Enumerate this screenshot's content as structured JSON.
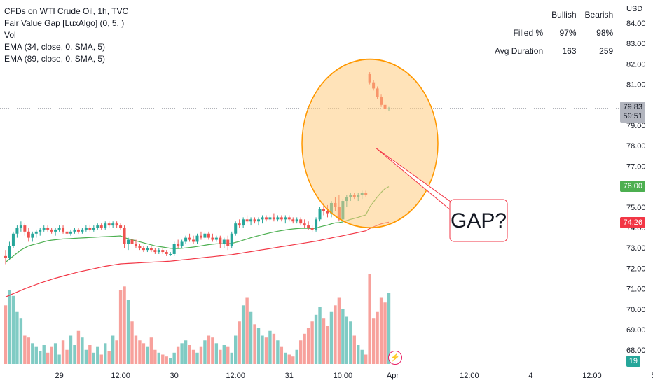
{
  "legend": {
    "title": "CFDs on WTI Crude Oil, 1h, TVC",
    "indicators": [
      "Fair Value Gap [LuxAlgo] (0, 5, )",
      "Vol",
      "EMA (34, close, 0, SMA, 5)",
      "EMA (89, close, 0, SMA, 5)"
    ]
  },
  "stats_table": {
    "headers": [
      "",
      "Bullish",
      "Bearish"
    ],
    "rows": [
      {
        "label": "Filled %",
        "bullish": "97%",
        "bearish": "98%"
      },
      {
        "label": "Avg Duration",
        "bullish": "163",
        "bearish": "259"
      }
    ]
  },
  "annotation": {
    "text": "GAP?"
  },
  "price_tags": {
    "current": "79.83",
    "countdown": "59:51",
    "ema34": "76.00",
    "ema89": "74.26"
  },
  "volume_tag": "19",
  "colors": {
    "up": "#26a69a",
    "down": "#ef5350",
    "ema34": "#4caf50",
    "ema89": "#f23645",
    "circle_fill": "#ffcc80",
    "circle_stroke": "#ff9800",
    "vol_up": "#80cbc4",
    "vol_down": "#f7a19c"
  },
  "chart_data": {
    "type": "candlestick",
    "y_axis": {
      "unit": "USD",
      "range": [
        67.5,
        84.7
      ],
      "ticks": [
        "84.00",
        "83.00",
        "82.00",
        "81.00",
        "80.00",
        "79.00",
        "78.00",
        "77.00",
        "76.00",
        "75.00",
        "74.00",
        "73.00",
        "72.00",
        "71.00",
        "70.00",
        "69.00",
        "68.00"
      ]
    },
    "x_axis": {
      "ticks": [
        {
          "label": "29",
          "index": 14
        },
        {
          "label": "12:00",
          "index": 30
        },
        {
          "label": "30",
          "index": 44
        },
        {
          "label": "12:00",
          "index": 60
        },
        {
          "label": "31",
          "index": 74
        },
        {
          "label": "10:00",
          "index": 88
        },
        {
          "label": "Apr",
          "index": 101
        },
        {
          "label": "12:00",
          "index": 121
        },
        {
          "label": "4",
          "index": 137
        },
        {
          "label": "12:00",
          "index": 153
        },
        {
          "label": "5",
          "index": 169
        }
      ]
    },
    "candles": [
      [
        72.6,
        72.9,
        72.2,
        72.5
      ],
      [
        72.5,
        73.3,
        72.4,
        73.1
      ],
      [
        73.1,
        73.8,
        73.0,
        73.7
      ],
      [
        73.7,
        74.1,
        73.5,
        74.0
      ],
      [
        74.0,
        74.3,
        73.8,
        74.1
      ],
      [
        74.1,
        74.2,
        73.6,
        73.8
      ],
      [
        73.8,
        74.0,
        73.3,
        73.5
      ],
      [
        73.5,
        73.8,
        73.3,
        73.7
      ],
      [
        73.7,
        73.9,
        73.5,
        73.8
      ],
      [
        73.8,
        74.0,
        73.6,
        73.9
      ],
      [
        73.9,
        74.1,
        73.8,
        74.0
      ],
      [
        74.0,
        74.1,
        73.8,
        73.9
      ],
      [
        73.9,
        74.0,
        73.7,
        73.8
      ],
      [
        73.8,
        74.0,
        73.6,
        73.9
      ],
      [
        73.9,
        74.1,
        73.8,
        74.0
      ],
      [
        74.0,
        74.1,
        73.7,
        73.8
      ],
      [
        73.8,
        73.9,
        73.6,
        73.7
      ],
      [
        73.7,
        73.9,
        73.6,
        73.8
      ],
      [
        73.8,
        74.0,
        73.7,
        73.9
      ],
      [
        73.9,
        74.0,
        73.7,
        73.8
      ],
      [
        73.8,
        74.0,
        73.7,
        73.9
      ],
      [
        73.9,
        74.1,
        73.8,
        74.0
      ],
      [
        74.0,
        74.1,
        73.8,
        73.9
      ],
      [
        73.9,
        74.1,
        73.8,
        74.0
      ],
      [
        74.0,
        74.2,
        73.9,
        74.1
      ],
      [
        74.1,
        74.2,
        73.9,
        74.0
      ],
      [
        74.0,
        74.3,
        73.9,
        74.2
      ],
      [
        74.2,
        74.3,
        74.0,
        74.1
      ],
      [
        74.1,
        74.3,
        74.0,
        74.2
      ],
      [
        74.2,
        74.3,
        74.0,
        74.1
      ],
      [
        74.1,
        74.2,
        73.9,
        74.0
      ],
      [
        74.0,
        74.1,
        73.0,
        73.2
      ],
      [
        73.2,
        73.5,
        72.9,
        73.4
      ],
      [
        73.4,
        73.6,
        73.1,
        73.2
      ],
      [
        73.2,
        73.4,
        73.0,
        73.1
      ],
      [
        73.1,
        73.2,
        72.9,
        73.0
      ],
      [
        73.0,
        73.1,
        72.8,
        72.9
      ],
      [
        72.9,
        73.1,
        72.8,
        73.0
      ],
      [
        73.0,
        73.1,
        72.8,
        72.9
      ],
      [
        72.9,
        73.0,
        72.7,
        72.8
      ],
      [
        72.8,
        73.0,
        72.7,
        72.9
      ],
      [
        72.9,
        73.0,
        72.7,
        72.8
      ],
      [
        72.8,
        72.9,
        72.6,
        72.7
      ],
      [
        72.7,
        72.8,
        72.6,
        72.7
      ],
      [
        72.7,
        73.3,
        72.6,
        73.2
      ],
      [
        73.2,
        73.4,
        73.0,
        73.1
      ],
      [
        73.1,
        73.4,
        73.0,
        73.3
      ],
      [
        73.3,
        73.6,
        73.2,
        73.5
      ],
      [
        73.5,
        73.7,
        73.3,
        73.4
      ],
      [
        73.4,
        73.6,
        73.2,
        73.3
      ],
      [
        73.3,
        73.7,
        73.2,
        73.6
      ],
      [
        73.6,
        73.8,
        73.4,
        73.5
      ],
      [
        73.5,
        73.8,
        73.4,
        73.7
      ],
      [
        73.7,
        73.8,
        73.4,
        73.5
      ],
      [
        73.5,
        73.7,
        73.3,
        73.4
      ],
      [
        73.4,
        73.6,
        73.3,
        73.5
      ],
      [
        73.5,
        73.6,
        73.0,
        73.2
      ],
      [
        73.2,
        73.5,
        73.0,
        73.4
      ],
      [
        73.4,
        73.6,
        72.9,
        73.1
      ],
      [
        73.1,
        73.8,
        73.0,
        73.7
      ],
      [
        73.7,
        74.3,
        73.6,
        74.2
      ],
      [
        74.2,
        74.4,
        74.0,
        74.1
      ],
      [
        74.1,
        74.5,
        74.0,
        74.4
      ],
      [
        74.4,
        74.6,
        74.2,
        74.3
      ],
      [
        74.3,
        74.5,
        74.1,
        74.4
      ],
      [
        74.4,
        74.5,
        74.2,
        74.3
      ],
      [
        74.3,
        74.5,
        74.1,
        74.4
      ],
      [
        74.4,
        74.6,
        74.2,
        74.5
      ],
      [
        74.5,
        74.6,
        74.3,
        74.4
      ],
      [
        74.4,
        74.6,
        74.3,
        74.5
      ],
      [
        74.5,
        74.7,
        74.3,
        74.4
      ],
      [
        74.4,
        74.6,
        74.3,
        74.5
      ],
      [
        74.5,
        74.6,
        74.3,
        74.4
      ],
      [
        74.4,
        74.6,
        74.2,
        74.5
      ],
      [
        74.5,
        74.6,
        74.3,
        74.4
      ],
      [
        74.4,
        74.5,
        74.2,
        74.3
      ],
      [
        74.3,
        74.5,
        74.2,
        74.4
      ],
      [
        74.4,
        74.5,
        74.1,
        74.2
      ],
      [
        74.2,
        74.4,
        74.0,
        74.1
      ],
      [
        74.1,
        74.3,
        73.9,
        74.0
      ],
      [
        74.0,
        74.1,
        73.8,
        73.9
      ],
      [
        73.9,
        74.5,
        73.8,
        74.4
      ],
      [
        74.4,
        75.0,
        74.3,
        74.9
      ],
      [
        74.9,
        75.2,
        74.6,
        74.8
      ],
      [
        74.8,
        75.1,
        74.5,
        74.7
      ],
      [
        74.7,
        75.3,
        74.5,
        75.2
      ],
      [
        75.2,
        75.5,
        74.8,
        75.0
      ],
      [
        75.0,
        75.6,
        74.3,
        74.4
      ],
      [
        74.4,
        75.4,
        74.2,
        75.3
      ],
      [
        75.3,
        75.6,
        75.0,
        75.5
      ],
      [
        75.5,
        75.7,
        75.3,
        75.6
      ],
      [
        75.6,
        75.7,
        75.4,
        75.5
      ],
      [
        75.5,
        75.7,
        75.3,
        75.6
      ],
      [
        75.6,
        75.8,
        75.4,
        75.7
      ],
      [
        75.7,
        75.8,
        75.5,
        75.6
      ],
      [
        81.5,
        81.6,
        81.0,
        81.1
      ],
      [
        81.1,
        81.2,
        80.7,
        80.8
      ],
      [
        80.8,
        80.9,
        80.3,
        80.4
      ],
      [
        80.4,
        80.5,
        79.9,
        80.0
      ],
      [
        80.0,
        80.1,
        79.6,
        79.8
      ],
      [
        79.8,
        79.9,
        79.7,
        79.83
      ]
    ],
    "ema34": [
      72.3,
      72.45,
      72.6,
      72.75,
      72.9,
      73.0,
      73.1,
      73.15,
      73.2,
      73.25,
      73.3,
      73.35,
      73.38,
      73.4,
      73.42,
      73.44,
      73.45,
      73.46,
      73.47,
      73.48,
      73.49,
      73.5,
      73.51,
      73.52,
      73.53,
      73.54,
      73.55,
      73.56,
      73.57,
      73.58,
      73.59,
      73.5,
      73.45,
      73.4,
      73.35,
      73.3,
      73.25,
      73.2,
      73.15,
      73.1,
      73.07,
      73.04,
      73.01,
      72.98,
      72.97,
      72.97,
      72.98,
      73.0,
      73.02,
      73.04,
      73.07,
      73.1,
      73.13,
      73.16,
      73.18,
      73.2,
      73.2,
      73.21,
      73.21,
      73.22,
      73.27,
      73.32,
      73.38,
      73.44,
      73.5,
      73.55,
      73.6,
      73.65,
      73.7,
      73.74,
      73.78,
      73.82,
      73.85,
      73.88,
      73.91,
      73.93,
      73.95,
      73.96,
      73.96,
      73.96,
      73.95,
      73.97,
      74.03,
      74.08,
      74.12,
      74.18,
      74.23,
      74.24,
      74.28,
      74.34,
      74.4,
      74.45,
      74.5,
      74.56,
      74.62,
      75.0,
      75.25,
      75.5,
      75.72,
      75.9,
      76.0
    ],
    "ema89": [
      70.6,
      70.68,
      70.76,
      70.84,
      70.92,
      71.0,
      71.07,
      71.14,
      71.21,
      71.28,
      71.34,
      71.4,
      71.46,
      71.52,
      71.57,
      71.62,
      71.67,
      71.72,
      71.77,
      71.82,
      71.86,
      71.9,
      71.94,
      71.98,
      72.02,
      72.06,
      72.1,
      72.13,
      72.16,
      72.19,
      72.22,
      72.23,
      72.24,
      72.25,
      72.26,
      72.27,
      72.28,
      72.29,
      72.3,
      72.31,
      72.32,
      72.33,
      72.34,
      72.35,
      72.37,
      72.39,
      72.41,
      72.43,
      72.45,
      72.47,
      72.49,
      72.51,
      72.53,
      72.55,
      72.57,
      72.59,
      72.61,
      72.63,
      72.65,
      72.67,
      72.7,
      72.73,
      72.76,
      72.79,
      72.82,
      72.85,
      72.88,
      72.91,
      72.94,
      72.97,
      73.0,
      73.03,
      73.06,
      73.09,
      73.12,
      73.15,
      73.18,
      73.21,
      73.24,
      73.27,
      73.3,
      73.33,
      73.37,
      73.41,
      73.45,
      73.49,
      73.53,
      73.56,
      73.6,
      73.64,
      73.68,
      73.72,
      73.76,
      73.8,
      73.84,
      73.95,
      74.03,
      74.11,
      74.18,
      74.23,
      74.26
    ],
    "volume": [
      62,
      78,
      72,
      55,
      48,
      30,
      28,
      22,
      18,
      14,
      20,
      12,
      18,
      22,
      10,
      25,
      15,
      30,
      20,
      35,
      28,
      15,
      20,
      12,
      18,
      10,
      22,
      14,
      30,
      25,
      78,
      82,
      68,
      45,
      30,
      25,
      22,
      18,
      28,
      15,
      12,
      10,
      8,
      6,
      12,
      18,
      22,
      25,
      20,
      15,
      12,
      18,
      25,
      30,
      28,
      22,
      15,
      20,
      18,
      12,
      30,
      45,
      62,
      70,
      55,
      42,
      38,
      30,
      28,
      35,
      32,
      25,
      18,
      12,
      10,
      8,
      15,
      25,
      32,
      38,
      45,
      52,
      60,
      48,
      40,
      55,
      62,
      70,
      58,
      50,
      45,
      30,
      20,
      15,
      10,
      95,
      48,
      55,
      70,
      65,
      75
    ]
  }
}
